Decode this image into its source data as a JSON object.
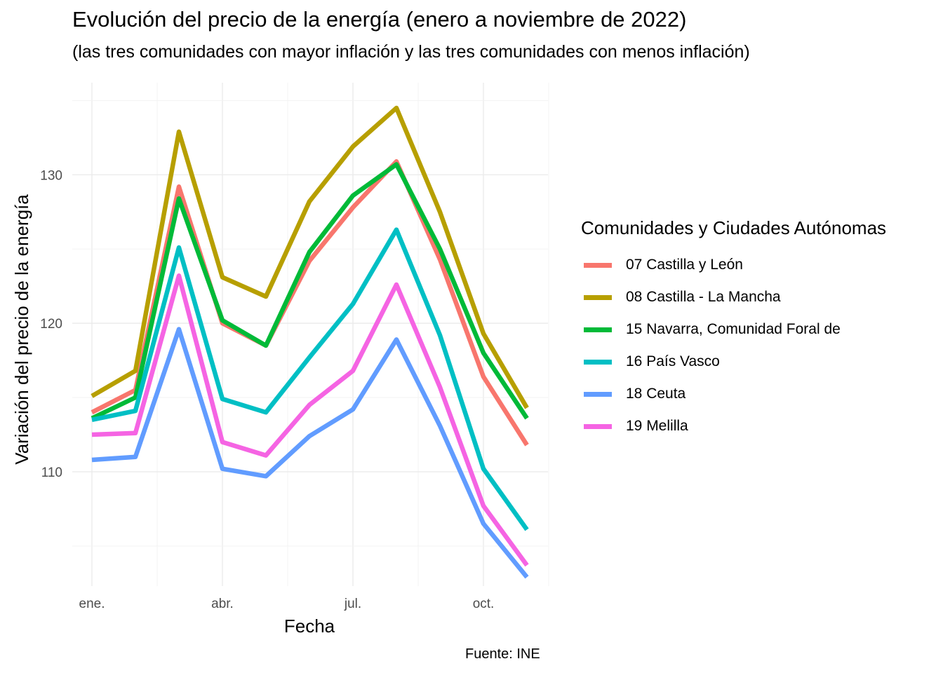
{
  "chart_data": {
    "type": "line",
    "title": "Evolución del precio de la energía (enero a noviembre de 2022)",
    "subtitle": "(las tres comunidades con mayor inflación y las tres comunidades con menos inflación)",
    "xlabel": "Fecha",
    "ylabel": "Variación del precio de la energía",
    "caption": "Fuente: INE",
    "legend_title": "Comunidades y Ciudades Autónomas",
    "legend_position": "right",
    "grid": true,
    "x": [
      "2022-01",
      "2022-02",
      "2022-03",
      "2022-04",
      "2022-05",
      "2022-06",
      "2022-07",
      "2022-08",
      "2022-09",
      "2022-10",
      "2022-11"
    ],
    "x_ticks": [
      {
        "month": "2022-01",
        "label": "ene."
      },
      {
        "month": "2022-04",
        "label": "abr."
      },
      {
        "month": "2022-07",
        "label": "jul."
      },
      {
        "month": "2022-10",
        "label": "oct."
      }
    ],
    "y_ticks": [
      110,
      120,
      130
    ],
    "ylim": [
      102.3,
      136.2
    ],
    "series": [
      {
        "name": "07 Castilla y León",
        "color": "#F8766D",
        "values": [
          114.0,
          115.5,
          129.2,
          120.0,
          118.5,
          124.2,
          127.8,
          130.9,
          124.3,
          116.4,
          111.8
        ]
      },
      {
        "name": "08 Castilla - La Mancha",
        "color": "#B79F00",
        "values": [
          115.1,
          116.8,
          132.9,
          123.1,
          121.8,
          128.2,
          131.9,
          134.5,
          127.5,
          119.3,
          114.3
        ]
      },
      {
        "name": "15 Navarra, Comunidad Foral de",
        "color": "#00BA38",
        "values": [
          113.6,
          115.0,
          128.4,
          120.2,
          118.5,
          124.8,
          128.6,
          130.7,
          125.0,
          118.0,
          113.6
        ]
      },
      {
        "name": "16 País Vasco",
        "color": "#00BFC4",
        "values": [
          113.5,
          114.1,
          125.1,
          114.9,
          114.0,
          117.7,
          121.3,
          126.3,
          119.2,
          110.2,
          106.1
        ]
      },
      {
        "name": "18 Ceuta",
        "color": "#619CFF",
        "values": [
          110.8,
          111.0,
          119.6,
          110.2,
          109.7,
          112.4,
          114.2,
          118.9,
          113.1,
          106.5,
          102.9
        ]
      },
      {
        "name": "19 Melilla",
        "color": "#F564E3",
        "values": [
          112.5,
          112.6,
          123.2,
          112.0,
          111.1,
          114.5,
          116.8,
          122.6,
          115.7,
          107.7,
          103.7
        ]
      }
    ]
  }
}
